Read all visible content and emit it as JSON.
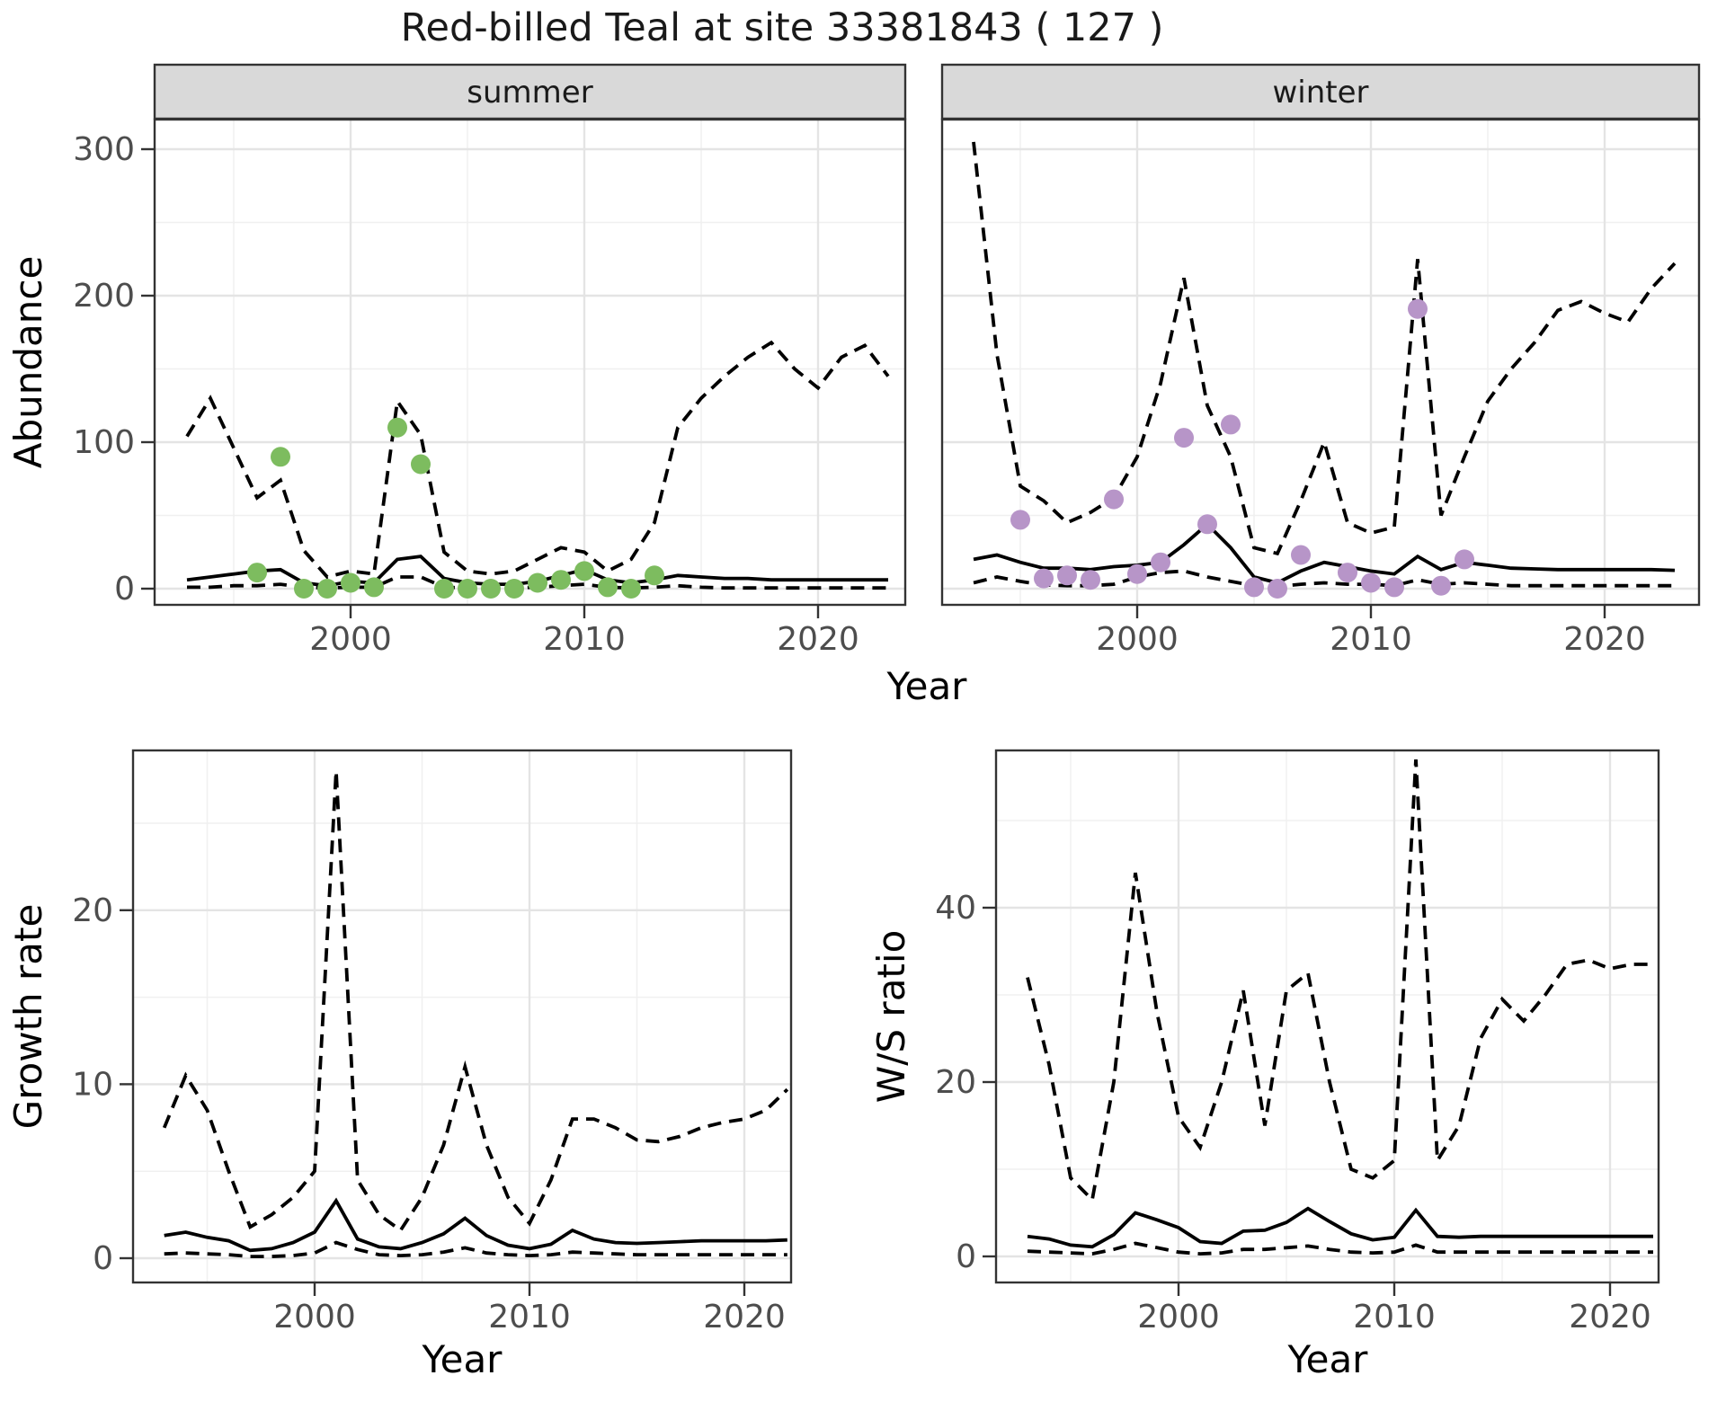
{
  "title": "Red-billed Teal at site 33381843 ( 127 )",
  "colors": {
    "summer_points": "#7dbc5f",
    "winter_points": "#b795c8",
    "line": "#000000",
    "grid_major": "#e4e4e4",
    "grid_minor": "#f0f0f0",
    "panel_border": "#333333",
    "strip_fill": "#d9d9d9",
    "tick_text": "#4d4d4d",
    "axis_title_text": "#000000"
  },
  "chart_data": [
    {
      "type": "line",
      "title": "Red-billed Teal at site 33381843 ( 127 )",
      "xlabel": "Year",
      "ylabel": "Abundance",
      "ylim": [
        0,
        320
      ],
      "x_range": [
        1991.5,
        2024
      ],
      "grid": true,
      "legend_position": "none",
      "x_ticks": [
        2000,
        2010,
        2020
      ],
      "x_tick_labels": [
        "2000",
        "2010",
        "2020"
      ],
      "x_minor": [
        1995,
        2005,
        2015
      ],
      "y_ticks": [
        0,
        100,
        200,
        300
      ],
      "y_tick_labels": [
        "0",
        "100",
        "200",
        "300"
      ],
      "y_minor": [
        50,
        150,
        250
      ],
      "facets": [
        {
          "label": "summer",
          "point_color_key": "summer_points",
          "years": [
            1993,
            1994,
            1995,
            1996,
            1997,
            1998,
            1999,
            2000,
            2001,
            2002,
            2003,
            2004,
            2005,
            2006,
            2007,
            2008,
            2009,
            2010,
            2011,
            2012,
            2013,
            2014,
            2015,
            2016,
            2017,
            2018,
            2019,
            2020,
            2021,
            2022,
            2023
          ],
          "fit": [
            6,
            8,
            10,
            12,
            13,
            4,
            2,
            5,
            4,
            20,
            22,
            7,
            4,
            3,
            3,
            5,
            9,
            13,
            6,
            4,
            6,
            9,
            8,
            7,
            7,
            6,
            6,
            6,
            6,
            6,
            6
          ],
          "ci_upper": [
            104,
            130,
            96,
            62,
            74,
            26,
            8,
            12,
            10,
            128,
            105,
            25,
            12,
            10,
            12,
            20,
            28,
            25,
            12,
            20,
            45,
            110,
            130,
            145,
            158,
            168,
            150,
            137,
            158,
            166,
            145
          ],
          "ci_lower": [
            1,
            1,
            2,
            2,
            3,
            1,
            0.5,
            1,
            1,
            8,
            8,
            1,
            0.5,
            0.5,
            0.5,
            1,
            2,
            3,
            1,
            0.5,
            1,
            2,
            1,
            0.5,
            0.5,
            0.5,
            0.5,
            0.5,
            0.5,
            0.5,
            0.5
          ],
          "obs_years": [
            1996,
            1997,
            1998,
            1999,
            2000,
            2001,
            2002,
            2003,
            2004,
            2005,
            2006,
            2007,
            2008,
            2009,
            2010,
            2011,
            2012,
            2013
          ],
          "obs_values": [
            11,
            90,
            0,
            0,
            4,
            1,
            110,
            85,
            0,
            0,
            0,
            0,
            4,
            6,
            12,
            1,
            0,
            9
          ]
        },
        {
          "label": "winter",
          "point_color_key": "winter_points",
          "years": [
            1993,
            1994,
            1995,
            1996,
            1997,
            1998,
            1999,
            2000,
            2001,
            2002,
            2003,
            2004,
            2005,
            2006,
            2007,
            2008,
            2009,
            2010,
            2011,
            2012,
            2013,
            2014,
            2015,
            2016,
            2017,
            2018,
            2019,
            2020,
            2021,
            2022,
            2023
          ],
          "fit": [
            20,
            23,
            18,
            14,
            14,
            13,
            15,
            16,
            18,
            30,
            44,
            28,
            8,
            4,
            12,
            18,
            15,
            12,
            10,
            22,
            13,
            18,
            16,
            14,
            13.5,
            13,
            13,
            13,
            13,
            13,
            12.5
          ],
          "ci_upper": [
            305,
            160,
            70,
            60,
            45,
            52,
            62,
            90,
            140,
            212,
            125,
            90,
            28,
            24,
            60,
            100,
            45,
            38,
            42,
            225,
            50,
            90,
            128,
            150,
            168,
            190,
            196,
            188,
            182,
            205,
            222
          ],
          "ci_lower": [
            4,
            8,
            5,
            2.5,
            2,
            2,
            3,
            8,
            11,
            12,
            8,
            5,
            2,
            1.5,
            3,
            4,
            3,
            3,
            2,
            6,
            3,
            4,
            3,
            2,
            2,
            2,
            2,
            2,
            2,
            2,
            2
          ],
          "obs_years": [
            1995,
            1996,
            1997,
            1998,
            1999,
            2000,
            2001,
            2002,
            2003,
            2004,
            2005,
            2006,
            2007,
            2009,
            2010,
            2011,
            2012,
            2013,
            2014
          ],
          "obs_values": [
            47,
            7,
            9,
            6,
            61,
            10,
            18,
            103,
            44,
            112,
            1,
            0,
            23,
            11,
            4,
            1,
            191,
            2,
            20
          ]
        }
      ]
    },
    {
      "type": "line",
      "xlabel": "Year",
      "ylabel": "Growth rate",
      "ylim": [
        0,
        29
      ],
      "x_range": [
        1991.5,
        2022.3
      ],
      "grid": true,
      "legend_position": "none",
      "x_ticks": [
        2000,
        2010,
        2020
      ],
      "x_tick_labels": [
        "2000",
        "2010",
        "2020"
      ],
      "x_minor": [
        1995,
        2005,
        2015
      ],
      "y_ticks": [
        0,
        10,
        20
      ],
      "y_tick_labels": [
        "0",
        "10",
        "20"
      ],
      "y_minor": [
        5,
        15,
        25
      ],
      "years": [
        1993,
        1994,
        1995,
        1996,
        1997,
        1998,
        1999,
        2000,
        2001,
        2002,
        2003,
        2004,
        2005,
        2006,
        2007,
        2008,
        2009,
        2010,
        2011,
        2012,
        2013,
        2014,
        2015,
        2016,
        2017,
        2018,
        2019,
        2020,
        2021,
        2022
      ],
      "fit": [
        1.3,
        1.5,
        1.2,
        1.0,
        0.45,
        0.55,
        0.9,
        1.5,
        3.3,
        1.1,
        0.65,
        0.55,
        0.9,
        1.4,
        2.3,
        1.3,
        0.75,
        0.55,
        0.8,
        1.6,
        1.1,
        0.9,
        0.85,
        0.9,
        0.95,
        1.0,
        1.0,
        1.0,
        1.0,
        1.05
      ],
      "ci_upper": [
        7.5,
        10.5,
        8.5,
        5.0,
        1.8,
        2.5,
        3.5,
        5.0,
        28,
        4.5,
        2.5,
        1.6,
        3.5,
        6.5,
        11,
        6.5,
        3.5,
        2.0,
        4.5,
        8.0,
        8.0,
        7.5,
        6.8,
        6.7,
        7.0,
        7.5,
        7.8,
        8.0,
        8.5,
        9.7
      ],
      "ci_lower": [
        0.25,
        0.3,
        0.25,
        0.2,
        0.1,
        0.1,
        0.15,
        0.3,
        0.9,
        0.5,
        0.2,
        0.15,
        0.2,
        0.35,
        0.6,
        0.3,
        0.2,
        0.15,
        0.2,
        0.35,
        0.3,
        0.25,
        0.2,
        0.2,
        0.2,
        0.2,
        0.2,
        0.2,
        0.2,
        0.2
      ]
    },
    {
      "type": "line",
      "xlabel": "Year",
      "ylabel": "W/S ratio",
      "ylim": [
        0,
        59
      ],
      "x_range": [
        1991.5,
        2022.3
      ],
      "grid": true,
      "legend_position": "none",
      "x_ticks": [
        2000,
        2010,
        2020
      ],
      "x_tick_labels": [
        "2000",
        "2010",
        "2020"
      ],
      "x_minor": [
        1995,
        2005,
        2015
      ],
      "y_ticks": [
        0,
        20,
        40
      ],
      "y_tick_labels": [
        "0",
        "20",
        "40"
      ],
      "y_minor": [
        10,
        30,
        50
      ],
      "years": [
        1993,
        1994,
        1995,
        1996,
        1997,
        1998,
        1999,
        2000,
        2001,
        2002,
        2003,
        2004,
        2005,
        2006,
        2007,
        2008,
        2009,
        2010,
        2011,
        2012,
        2013,
        2014,
        2015,
        2016,
        2017,
        2018,
        2019,
        2020,
        2021,
        2022
      ],
      "fit": [
        2.3,
        2.0,
        1.3,
        1.1,
        2.5,
        5.0,
        4.2,
        3.3,
        1.7,
        1.5,
        2.9,
        3.0,
        3.9,
        5.5,
        4.0,
        2.6,
        1.9,
        2.2,
        5.3,
        2.3,
        2.2,
        2.3,
        2.3,
        2.3,
        2.3,
        2.3,
        2.3,
        2.3,
        2.3,
        2.3
      ],
      "ci_upper": [
        32,
        22,
        9,
        6.5,
        20,
        44,
        28,
        16,
        12.5,
        20,
        30.5,
        15,
        30.5,
        32.5,
        20,
        10,
        9,
        11,
        57,
        11,
        15,
        25,
        29.5,
        27,
        30,
        33.5,
        34,
        33,
        33.5,
        33.5
      ],
      "ci_lower": [
        0.6,
        0.5,
        0.4,
        0.3,
        0.8,
        1.5,
        1.0,
        0.5,
        0.3,
        0.4,
        0.8,
        0.8,
        1.0,
        1.2,
        0.8,
        0.5,
        0.4,
        0.5,
        1.3,
        0.5,
        0.5,
        0.5,
        0.5,
        0.5,
        0.5,
        0.5,
        0.5,
        0.5,
        0.5,
        0.5
      ]
    }
  ]
}
